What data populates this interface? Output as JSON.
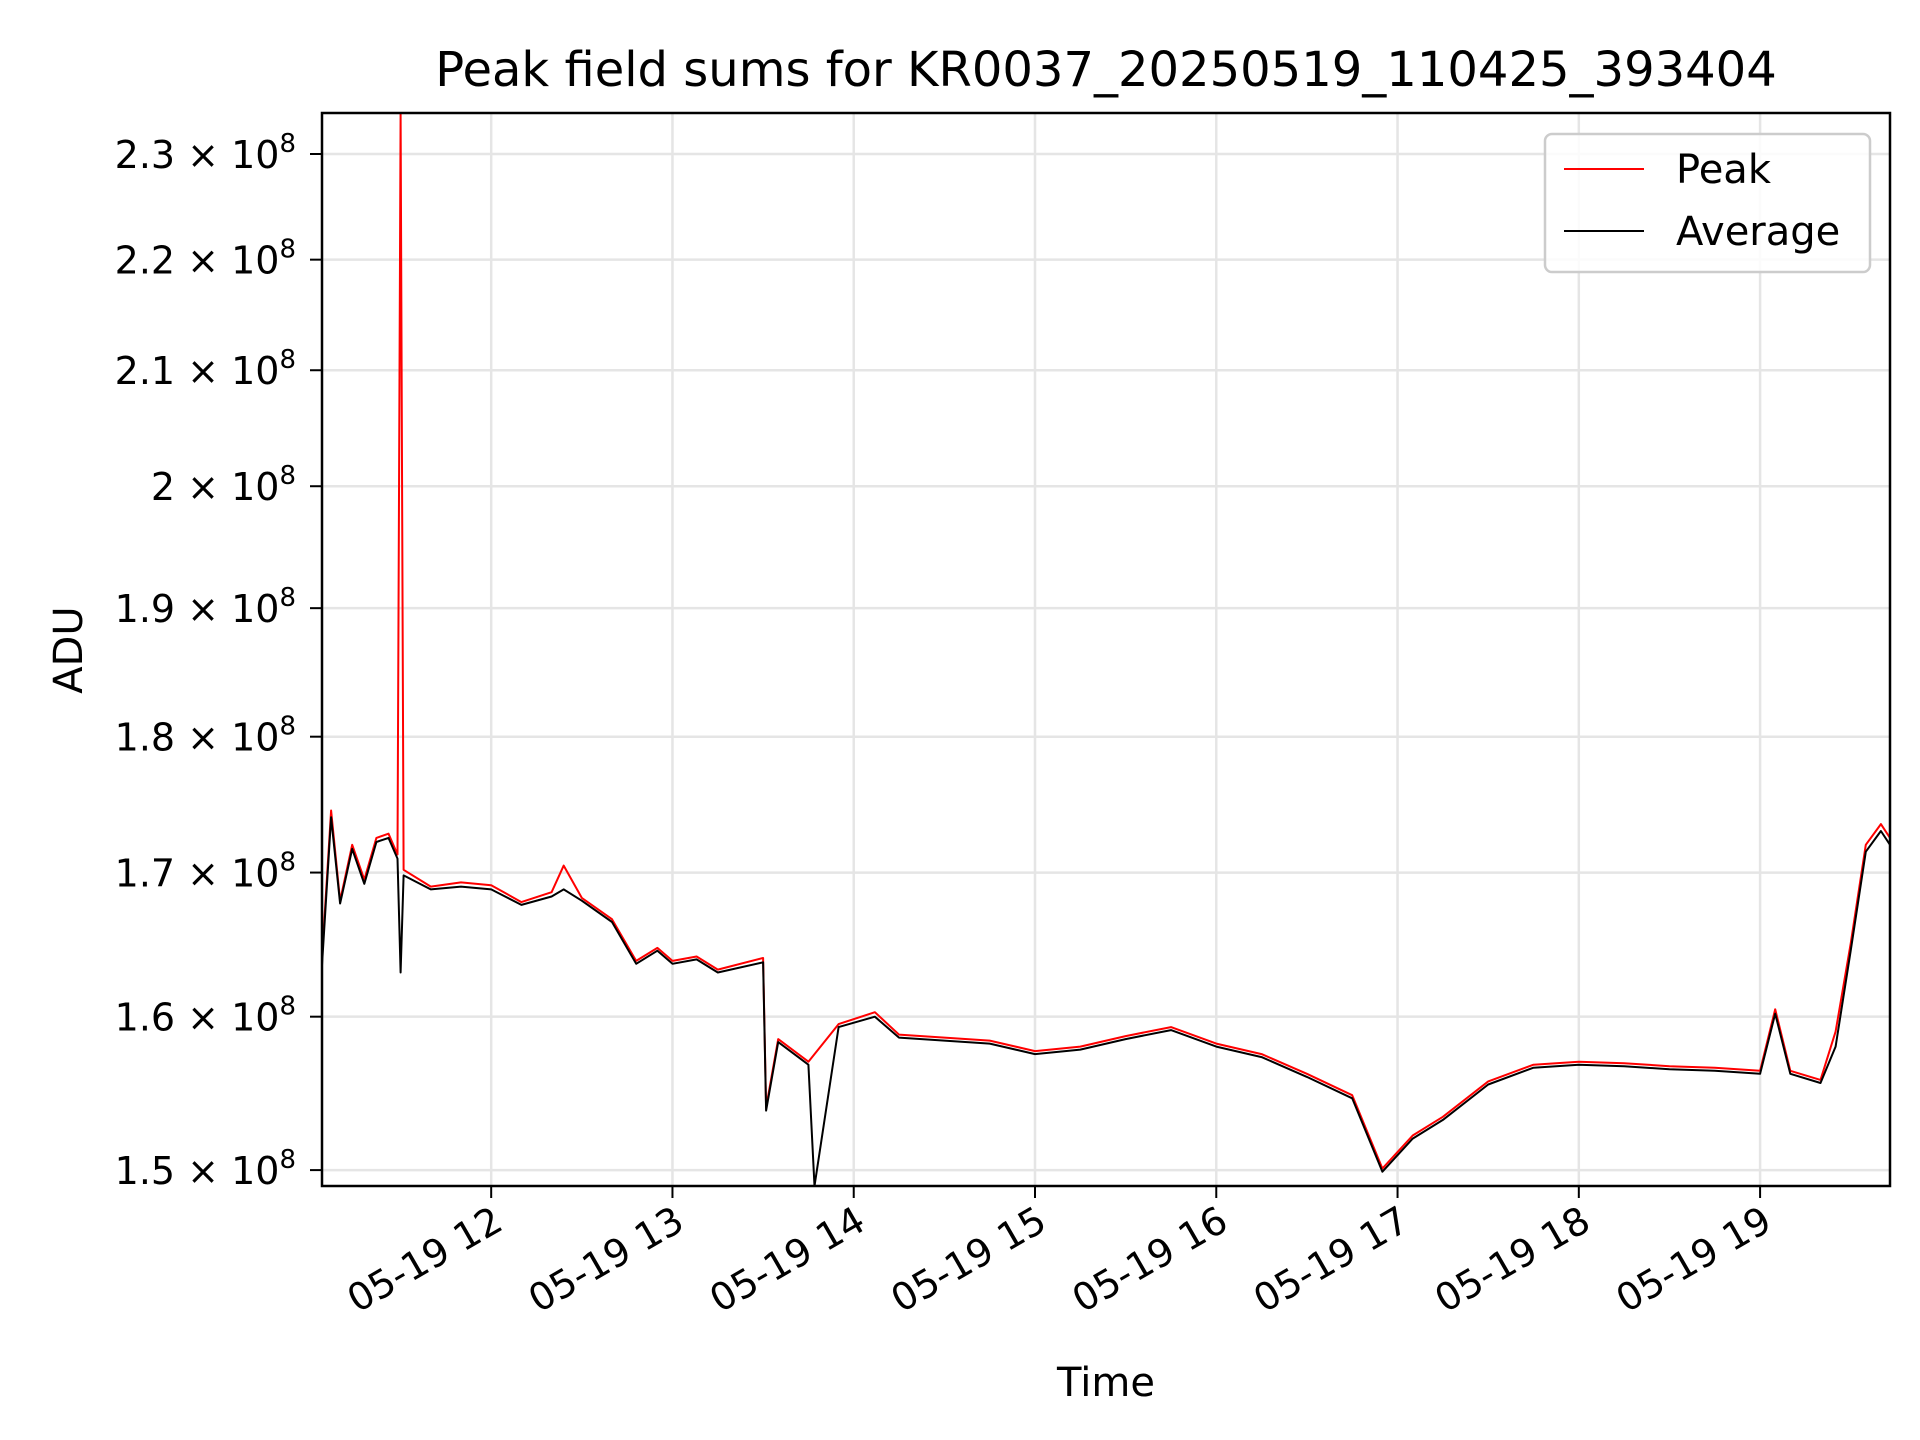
{
  "chart_data": {
    "type": "line",
    "title": "Peak field sums for KR0037_20250519_110425_393404",
    "xlabel": "Time",
    "ylabel": "ADU",
    "x_range": [
      "2025-05-19 11:04",
      "2025-05-19 19:43"
    ],
    "y_range": [
      149000000,
      234000000
    ],
    "y_scale": "log",
    "grid": true,
    "legend_position": "upper right",
    "x_ticks": [
      {
        "t": "2025-05-19 12:00",
        "label": "05-19 12"
      },
      {
        "t": "2025-05-19 13:00",
        "label": "05-19 13"
      },
      {
        "t": "2025-05-19 14:00",
        "label": "05-19 14"
      },
      {
        "t": "2025-05-19 15:00",
        "label": "05-19 15"
      },
      {
        "t": "2025-05-19 16:00",
        "label": "05-19 16"
      },
      {
        "t": "2025-05-19 17:00",
        "label": "05-19 17"
      },
      {
        "t": "2025-05-19 18:00",
        "label": "05-19 18"
      },
      {
        "t": "2025-05-19 19:00",
        "label": "05-19 19"
      }
    ],
    "y_ticks": [
      {
        "value": 150000000,
        "mantissa": "1.5",
        "exponent": "8"
      },
      {
        "value": 160000000,
        "mantissa": "1.6",
        "exponent": "8"
      },
      {
        "value": 170000000,
        "mantissa": "1.7",
        "exponent": "8"
      },
      {
        "value": 180000000,
        "mantissa": "1.8",
        "exponent": "8"
      },
      {
        "value": 190000000,
        "mantissa": "1.9",
        "exponent": "8"
      },
      {
        "value": 200000000,
        "mantissa": "2",
        "exponent": "8"
      },
      {
        "value": 210000000,
        "mantissa": "2.1",
        "exponent": "8"
      },
      {
        "value": 220000000,
        "mantissa": "2.2",
        "exponent": "8"
      },
      {
        "value": 230000000,
        "mantissa": "2.3",
        "exponent": "8"
      }
    ],
    "series": [
      {
        "name": "Peak",
        "color": "#ff0000",
        "points": [
          [
            "2025-05-19 11:04",
            164000000
          ],
          [
            "2025-05-19 11:07",
            174500000
          ],
          [
            "2025-05-19 11:10",
            168000000
          ],
          [
            "2025-05-19 11:14",
            172000000
          ],
          [
            "2025-05-19 11:18",
            169500000
          ],
          [
            "2025-05-19 11:22",
            172500000
          ],
          [
            "2025-05-19 11:26",
            172800000
          ],
          [
            "2025-05-19 11:29",
            171300000
          ],
          [
            "2025-05-19 11:30",
            234000000
          ],
          [
            "2025-05-19 11:31",
            170200000
          ],
          [
            "2025-05-19 11:40",
            169000000
          ],
          [
            "2025-05-19 11:50",
            169300000
          ],
          [
            "2025-05-19 12:00",
            169100000
          ],
          [
            "2025-05-19 12:10",
            167900000
          ],
          [
            "2025-05-19 12:20",
            168600000
          ],
          [
            "2025-05-19 12:24",
            170500000
          ],
          [
            "2025-05-19 12:30",
            168200000
          ],
          [
            "2025-05-19 12:40",
            166700000
          ],
          [
            "2025-05-19 12:48",
            163800000
          ],
          [
            "2025-05-19 12:55",
            164700000
          ],
          [
            "2025-05-19 13:00",
            163800000
          ],
          [
            "2025-05-19 13:08",
            164100000
          ],
          [
            "2025-05-19 13:15",
            163200000
          ],
          [
            "2025-05-19 13:30",
            164000000
          ],
          [
            "2025-05-19 13:31",
            154000000
          ],
          [
            "2025-05-19 13:35",
            158500000
          ],
          [
            "2025-05-19 13:45",
            157000000
          ],
          [
            "2025-05-19 13:55",
            159500000
          ],
          [
            "2025-05-19 14:07",
            160300000
          ],
          [
            "2025-05-19 14:15",
            158800000
          ],
          [
            "2025-05-19 14:30",
            158600000
          ],
          [
            "2025-05-19 14:45",
            158400000
          ],
          [
            "2025-05-19 15:00",
            157700000
          ],
          [
            "2025-05-19 15:15",
            158000000
          ],
          [
            "2025-05-19 15:30",
            158700000
          ],
          [
            "2025-05-19 15:45",
            159300000
          ],
          [
            "2025-05-19 16:00",
            158200000
          ],
          [
            "2025-05-19 16:15",
            157500000
          ],
          [
            "2025-05-19 16:30",
            156200000
          ],
          [
            "2025-05-19 16:45",
            154800000
          ],
          [
            "2025-05-19 16:55",
            150100000
          ],
          [
            "2025-05-19 17:05",
            152200000
          ],
          [
            "2025-05-19 17:15",
            153400000
          ],
          [
            "2025-05-19 17:30",
            155700000
          ],
          [
            "2025-05-19 17:45",
            156800000
          ],
          [
            "2025-05-19 18:00",
            157000000
          ],
          [
            "2025-05-19 18:15",
            156900000
          ],
          [
            "2025-05-19 18:30",
            156700000
          ],
          [
            "2025-05-19 18:45",
            156600000
          ],
          [
            "2025-05-19 19:00",
            156400000
          ],
          [
            "2025-05-19 19:05",
            160500000
          ],
          [
            "2025-05-19 19:10",
            156400000
          ],
          [
            "2025-05-19 19:20",
            155800000
          ],
          [
            "2025-05-19 19:25",
            159000000
          ],
          [
            "2025-05-19 19:30",
            165000000
          ],
          [
            "2025-05-19 19:35",
            172000000
          ],
          [
            "2025-05-19 19:40",
            173500000
          ],
          [
            "2025-05-19 19:43",
            172500000
          ]
        ]
      },
      {
        "name": "Average",
        "color": "#000000",
        "points": [
          [
            "2025-05-19 11:04",
            163500000
          ],
          [
            "2025-05-19 11:07",
            174000000
          ],
          [
            "2025-05-19 11:10",
            167800000
          ],
          [
            "2025-05-19 11:14",
            171700000
          ],
          [
            "2025-05-19 11:18",
            169200000
          ],
          [
            "2025-05-19 11:22",
            172200000
          ],
          [
            "2025-05-19 11:26",
            172500000
          ],
          [
            "2025-05-19 11:29",
            171000000
          ],
          [
            "2025-05-19 11:30",
            163000000
          ],
          [
            "2025-05-19 11:31",
            169800000
          ],
          [
            "2025-05-19 11:40",
            168800000
          ],
          [
            "2025-05-19 11:50",
            169000000
          ],
          [
            "2025-05-19 12:00",
            168800000
          ],
          [
            "2025-05-19 12:10",
            167700000
          ],
          [
            "2025-05-19 12:20",
            168300000
          ],
          [
            "2025-05-19 12:24",
            168800000
          ],
          [
            "2025-05-19 12:30",
            168000000
          ],
          [
            "2025-05-19 12:40",
            166500000
          ],
          [
            "2025-05-19 12:48",
            163600000
          ],
          [
            "2025-05-19 12:55",
            164500000
          ],
          [
            "2025-05-19 13:00",
            163600000
          ],
          [
            "2025-05-19 13:08",
            163900000
          ],
          [
            "2025-05-19 13:15",
            163000000
          ],
          [
            "2025-05-19 13:30",
            163700000
          ],
          [
            "2025-05-19 13:31",
            153800000
          ],
          [
            "2025-05-19 13:35",
            158300000
          ],
          [
            "2025-05-19 13:45",
            156800000
          ],
          [
            "2025-05-19 13:47",
            149000000
          ],
          [
            "2025-05-19 13:55",
            159300000
          ],
          [
            "2025-05-19 14:07",
            160000000
          ],
          [
            "2025-05-19 14:15",
            158600000
          ],
          [
            "2025-05-19 14:30",
            158400000
          ],
          [
            "2025-05-19 14:45",
            158200000
          ],
          [
            "2025-05-19 15:00",
            157500000
          ],
          [
            "2025-05-19 15:15",
            157800000
          ],
          [
            "2025-05-19 15:30",
            158500000
          ],
          [
            "2025-05-19 15:45",
            159100000
          ],
          [
            "2025-05-19 16:00",
            158000000
          ],
          [
            "2025-05-19 16:15",
            157300000
          ],
          [
            "2025-05-19 16:30",
            156000000
          ],
          [
            "2025-05-19 16:45",
            154600000
          ],
          [
            "2025-05-19 16:55",
            149900000
          ],
          [
            "2025-05-19 17:05",
            152000000
          ],
          [
            "2025-05-19 17:15",
            153200000
          ],
          [
            "2025-05-19 17:30",
            155500000
          ],
          [
            "2025-05-19 17:45",
            156600000
          ],
          [
            "2025-05-19 18:00",
            156800000
          ],
          [
            "2025-05-19 18:15",
            156700000
          ],
          [
            "2025-05-19 18:30",
            156500000
          ],
          [
            "2025-05-19 18:45",
            156400000
          ],
          [
            "2025-05-19 19:00",
            156200000
          ],
          [
            "2025-05-19 19:05",
            160200000
          ],
          [
            "2025-05-19 19:10",
            156200000
          ],
          [
            "2025-05-19 19:20",
            155600000
          ],
          [
            "2025-05-19 19:25",
            158000000
          ],
          [
            "2025-05-19 19:30",
            164500000
          ],
          [
            "2025-05-19 19:35",
            171500000
          ],
          [
            "2025-05-19 19:40",
            173000000
          ],
          [
            "2025-05-19 19:43",
            172000000
          ]
        ]
      }
    ]
  }
}
